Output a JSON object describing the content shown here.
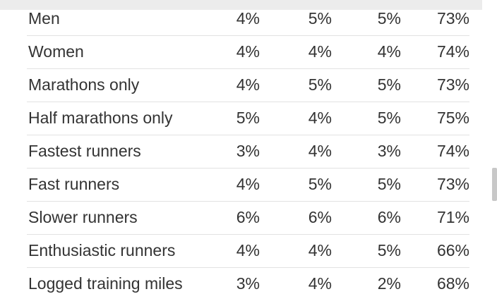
{
  "table": {
    "rows": [
      [
        "Men",
        "4%",
        "5%",
        "5%",
        "73%"
      ],
      [
        "Women",
        "4%",
        "4%",
        "4%",
        "74%"
      ],
      [
        "Marathons only",
        "4%",
        "5%",
        "5%",
        "73%"
      ],
      [
        "Half marathons only",
        "5%",
        "4%",
        "5%",
        "75%"
      ],
      [
        "Fastest runners",
        "3%",
        "4%",
        "3%",
        "74%"
      ],
      [
        "Fast runners",
        "4%",
        "5%",
        "5%",
        "73%"
      ],
      [
        "Slower runners",
        "6%",
        "6%",
        "6%",
        "71%"
      ],
      [
        "Enthusiastic runners",
        "4%",
        "4%",
        "5%",
        "66%"
      ],
      [
        "Logged training miles",
        "3%",
        "4%",
        "2%",
        "68%"
      ]
    ]
  }
}
